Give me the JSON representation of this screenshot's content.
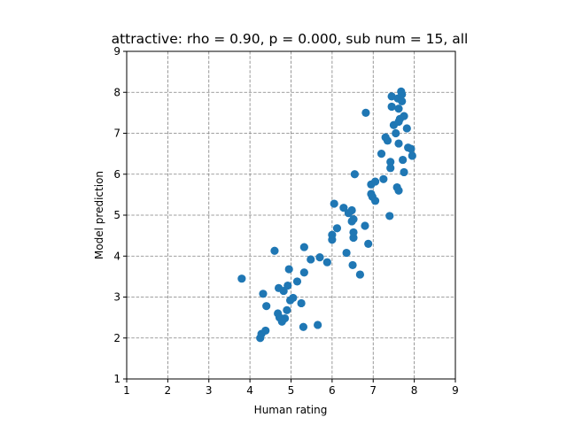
{
  "chart_data": {
    "type": "scatter",
    "title": "attractive: rho = 0.90, p = 0.000, sub num = 15, all",
    "xlabel": "Human rating",
    "ylabel": "Model prediction",
    "xlim": [
      1,
      9
    ],
    "ylim": [
      1,
      9
    ],
    "xticks": [
      "1",
      "2",
      "3",
      "4",
      "5",
      "6",
      "7",
      "8",
      "9"
    ],
    "yticks": [
      "1",
      "2",
      "3",
      "4",
      "5",
      "6",
      "7",
      "8",
      "9"
    ],
    "grid": true,
    "grid_style": "dashed",
    "marker_color": "#1f77b4",
    "points": [
      [
        3.8,
        3.45
      ],
      [
        4.25,
        2.0
      ],
      [
        4.28,
        2.1
      ],
      [
        4.38,
        2.18
      ],
      [
        4.32,
        3.08
      ],
      [
        4.4,
        2.78
      ],
      [
        4.6,
        4.13
      ],
      [
        4.68,
        2.6
      ],
      [
        4.7,
        3.22
      ],
      [
        4.72,
        2.5
      ],
      [
        4.78,
        2.4
      ],
      [
        4.82,
        3.15
      ],
      [
        4.85,
        2.48
      ],
      [
        4.9,
        2.68
      ],
      [
        4.92,
        3.28
      ],
      [
        4.95,
        3.68
      ],
      [
        4.98,
        2.92
      ],
      [
        5.05,
        2.98
      ],
      [
        5.15,
        3.38
      ],
      [
        5.25,
        2.85
      ],
      [
        5.32,
        4.22
      ],
      [
        5.32,
        3.6
      ],
      [
        5.3,
        2.27
      ],
      [
        5.48,
        3.92
      ],
      [
        5.65,
        2.32
      ],
      [
        5.7,
        3.97
      ],
      [
        5.88,
        3.85
      ],
      [
        6.0,
        4.4
      ],
      [
        6.0,
        4.52
      ],
      [
        6.05,
        5.28
      ],
      [
        6.12,
        4.68
      ],
      [
        6.28,
        5.18
      ],
      [
        6.35,
        4.08
      ],
      [
        6.4,
        5.05
      ],
      [
        6.48,
        5.12
      ],
      [
        6.48,
        4.85
      ],
      [
        6.5,
        3.78
      ],
      [
        6.52,
        4.9
      ],
      [
        6.52,
        4.45
      ],
      [
        6.52,
        4.58
      ],
      [
        6.55,
        6.0
      ],
      [
        6.68,
        3.55
      ],
      [
        6.8,
        4.74
      ],
      [
        6.82,
        7.5
      ],
      [
        6.88,
        4.3
      ],
      [
        6.95,
        5.75
      ],
      [
        6.95,
        5.52
      ],
      [
        6.98,
        5.45
      ],
      [
        7.05,
        5.35
      ],
      [
        7.05,
        5.82
      ],
      [
        7.2,
        6.5
      ],
      [
        7.25,
        5.88
      ],
      [
        7.3,
        6.9
      ],
      [
        7.35,
        6.82
      ],
      [
        7.42,
        6.3
      ],
      [
        7.42,
        6.15
      ],
      [
        7.4,
        4.98
      ],
      [
        7.45,
        7.9
      ],
      [
        7.45,
        7.65
      ],
      [
        7.5,
        7.2
      ],
      [
        7.55,
        7.0
      ],
      [
        7.58,
        5.68
      ],
      [
        7.6,
        7.85
      ],
      [
        7.62,
        7.6
      ],
      [
        7.62,
        7.28
      ],
      [
        7.62,
        6.75
      ],
      [
        7.62,
        5.6
      ],
      [
        7.65,
        7.35
      ],
      [
        7.68,
        8.02
      ],
      [
        7.7,
        7.95
      ],
      [
        7.7,
        7.78
      ],
      [
        7.72,
        6.35
      ],
      [
        7.75,
        7.42
      ],
      [
        7.75,
        6.05
      ],
      [
        7.82,
        7.12
      ],
      [
        7.85,
        6.65
      ],
      [
        7.92,
        6.62
      ],
      [
        7.95,
        6.45
      ]
    ]
  }
}
